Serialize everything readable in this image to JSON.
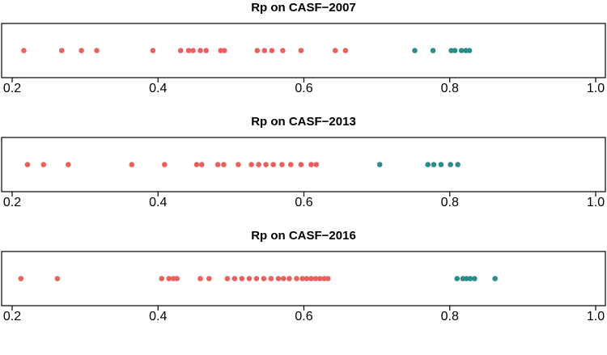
{
  "colors": {
    "red": "#e8615f",
    "teal": "#2b8c8c"
  },
  "chart_data": [
    {
      "type": "scatter",
      "title": "Rp on CASF−2007",
      "xlim": [
        0.2,
        1.0
      ],
      "x_ticks": [
        "0.2",
        "0.4",
        "0.6",
        "0.8",
        "1.0"
      ],
      "series": [
        {
          "color": "red",
          "values": [
            0.216,
            0.268,
            0.295,
            0.316,
            0.393,
            0.431,
            0.442,
            0.448,
            0.458,
            0.466,
            0.486,
            0.491,
            0.536,
            0.546,
            0.556,
            0.571,
            0.596,
            0.643,
            0.657
          ]
        },
        {
          "color": "teal",
          "values": [
            0.752,
            0.777,
            0.802,
            0.807,
            0.816,
            0.822,
            0.827
          ]
        }
      ]
    },
    {
      "type": "scatter",
      "title": "Rp on CASF−2013",
      "xlim": [
        0.2,
        1.0
      ],
      "x_ticks": [
        "0.2",
        "0.4",
        "0.6",
        "0.8",
        "1.0"
      ],
      "series": [
        {
          "color": "red",
          "values": [
            0.221,
            0.243,
            0.277,
            0.364,
            0.409,
            0.453,
            0.46,
            0.482,
            0.49,
            0.51,
            0.528,
            0.538,
            0.548,
            0.558,
            0.57,
            0.582,
            0.596,
            0.61,
            0.617
          ]
        },
        {
          "color": "teal",
          "values": [
            0.704,
            0.77,
            0.778,
            0.788,
            0.801,
            0.811
          ]
        }
      ]
    },
    {
      "type": "scatter",
      "title": "Rp on CASF−2016",
      "xlim": [
        0.2,
        1.0
      ],
      "x_ticks": [
        "0.2",
        "0.4",
        "0.6",
        "0.8",
        "1.0"
      ],
      "series": [
        {
          "color": "red",
          "values": [
            0.212,
            0.262,
            0.405,
            0.415,
            0.421,
            0.426,
            0.458,
            0.47,
            0.495,
            0.505,
            0.515,
            0.525,
            0.535,
            0.545,
            0.555,
            0.565,
            0.572,
            0.58,
            0.59,
            0.598,
            0.604,
            0.61,
            0.616,
            0.622,
            0.628,
            0.633
          ]
        },
        {
          "color": "teal",
          "values": [
            0.81,
            0.818,
            0.823,
            0.828,
            0.834,
            0.862
          ]
        }
      ]
    }
  ]
}
